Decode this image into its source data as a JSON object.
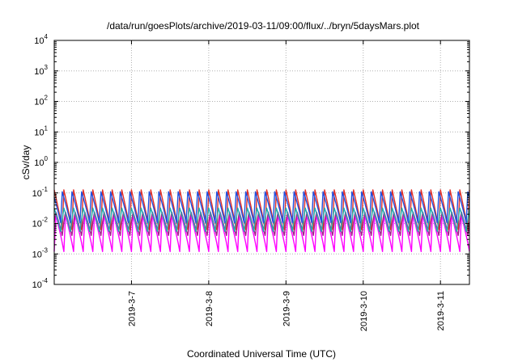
{
  "chart_data": {
    "type": "line",
    "title": "/data/run/goesPlots/archive/2019-03-11/09:00/flux/../bryn/5daysMars.plot",
    "xlabel": "Coordinated Universal Time (UTC)",
    "ylabel": "cSv/day",
    "yscale": "log",
    "ylim": [
      0.0001,
      10000
    ],
    "yticks": [
      {
        "base": "10",
        "exp": "-4"
      },
      {
        "base": "10",
        "exp": "-3"
      },
      {
        "base": "10",
        "exp": "-2"
      },
      {
        "base": "10",
        "exp": "-1"
      },
      {
        "base": "10",
        "exp": "0"
      },
      {
        "base": "10",
        "exp": "1"
      },
      {
        "base": "10",
        "exp": "2"
      },
      {
        "base": "10",
        "exp": "3"
      },
      {
        "base": "10",
        "exp": "4"
      }
    ],
    "xlim": [
      "2019-03-06 00:00",
      "2019-03-11 09:00"
    ],
    "xticks": [
      "2019-3-7",
      "2019-3-8",
      "2019-3-9",
      "2019-3-10",
      "2019-3-11"
    ],
    "grid": true,
    "oscillation_period_hours": 3,
    "series": [
      {
        "color": "#ff00ff",
        "peak": 0.02,
        "trough": 0.0012
      },
      {
        "color": "#a0208a",
        "peak": 0.03,
        "trough": 0.003
      },
      {
        "color": "#e0302a",
        "peak": 0.13,
        "trough": 0.006
      },
      {
        "color": "#20b0b0",
        "peak": 0.04,
        "trough": 0.004
      },
      {
        "color": "#2050e0",
        "peak": 0.11,
        "trough": 0.01
      }
    ]
  }
}
